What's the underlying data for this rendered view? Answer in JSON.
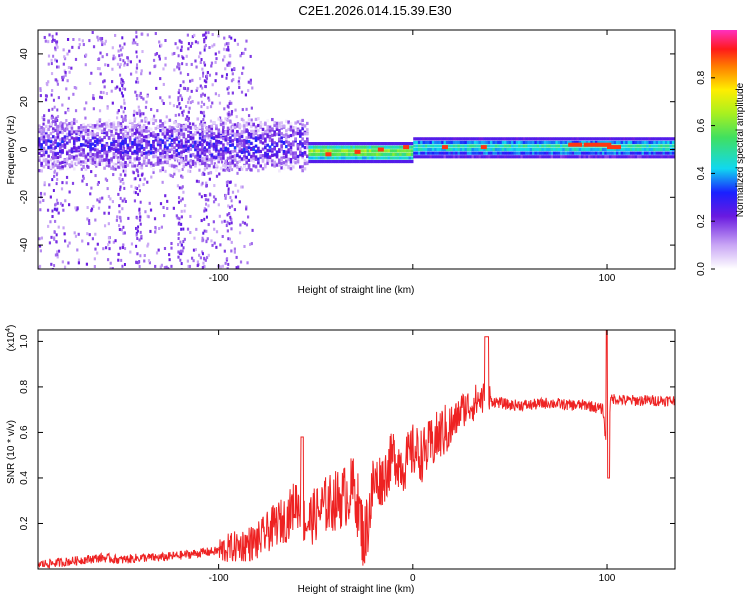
{
  "title": "C2E1.2026.014.15.39.E30",
  "chart_data": [
    {
      "type": "heatmap",
      "xlabel": "Height of straight line (km)",
      "ylabel": "Frequency (Hz)",
      "xlim": [
        -193,
        135
      ],
      "ylim": [
        -50,
        50
      ],
      "xticks": [
        -100,
        0,
        100
      ],
      "xtick_labels": [
        "-100",
        "",
        "100"
      ],
      "yticks": [
        -40,
        -20,
        0,
        20,
        40
      ],
      "ytick_labels": [
        "-40",
        "-20",
        "0",
        "20",
        "40"
      ],
      "colorbar": {
        "label": "Normalized spectral amplitude",
        "range": [
          0.0,
          1.0
        ],
        "ticks": [
          0.0,
          0.2,
          0.4,
          0.6,
          0.8
        ],
        "tick_labels": [
          "0.0",
          "0.2",
          "0.4",
          "0.6",
          "0.8"
        ]
      },
      "ridge": {
        "description": "spectral band centered near 0 Hz",
        "segments": [
          {
            "x": [
              -193,
              -55
            ],
            "center_hz": 2,
            "amplitude": 0.25
          },
          {
            "x": [
              -55,
              0
            ],
            "center_hz": -1,
            "amplitude": 0.65
          },
          {
            "x": [
              0,
              135
            ],
            "center_hz": 1,
            "amplitude": 0.5
          }
        ]
      }
    },
    {
      "type": "line",
      "xlabel": "Height of straight line (km)",
      "ylabel": "SNR (10 * v/v)",
      "y_multiplier": "(x10",
      "y_multiplier_exp": "4",
      "y_multiplier_close": ")",
      "xlim": [
        -193,
        135
      ],
      "ylim": [
        0,
        1.05
      ],
      "xticks": [
        -100,
        0,
        100
      ],
      "xtick_labels": [
        "-100",
        "0",
        "100"
      ],
      "yticks": [
        0.2,
        0.4,
        0.6,
        0.8,
        1.0
      ],
      "ytick_labels": [
        "0.2",
        "0.4",
        "0.6",
        "0.8",
        "1.0"
      ],
      "color": "#ee2222",
      "series": [
        {
          "name": "SNR",
          "x": [
            -193,
            -180,
            -170,
            -160,
            -150,
            -140,
            -130,
            -120,
            -110,
            -100,
            -90,
            -80,
            -75,
            -70,
            -65,
            -60,
            -55,
            -50,
            -45,
            -40,
            -35,
            -30,
            -25,
            -20,
            -15,
            -10,
            -5,
            0,
            5,
            10,
            15,
            20,
            25,
            30,
            35,
            40,
            50,
            60,
            70,
            80,
            90,
            98,
            100,
            102,
            110,
            120,
            135
          ],
          "y": [
            0.02,
            0.03,
            0.04,
            0.05,
            0.04,
            0.05,
            0.05,
            0.06,
            0.07,
            0.08,
            0.1,
            0.12,
            0.16,
            0.2,
            0.22,
            0.3,
            0.2,
            0.24,
            0.28,
            0.3,
            0.32,
            0.36,
            0.12,
            0.38,
            0.4,
            0.5,
            0.45,
            0.52,
            0.5,
            0.55,
            0.6,
            0.62,
            0.7,
            0.72,
            0.75,
            0.74,
            0.72,
            0.72,
            0.73,
            0.72,
            0.72,
            0.7,
            0.5,
            0.75,
            0.74,
            0.74,
            0.74
          ]
        }
      ]
    }
  ]
}
